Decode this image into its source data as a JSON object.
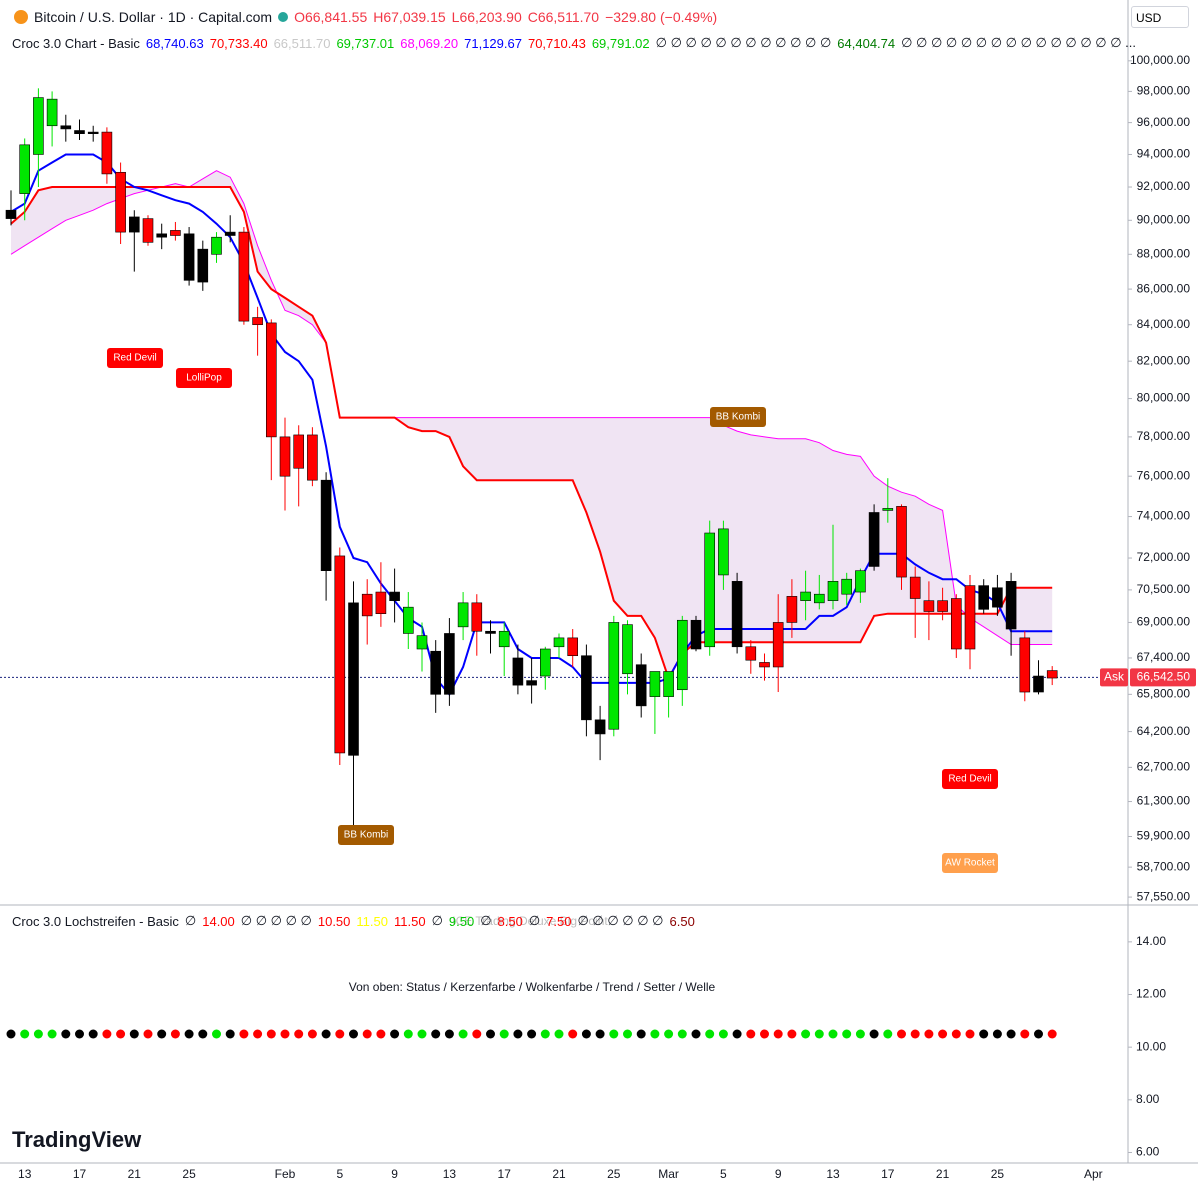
{
  "header": {
    "symbol": "Bitcoin / U.S. Dollar · 1D · Capital.com",
    "ohlc": [
      {
        "text": "O66,841.55",
        "color": "#f23645"
      },
      {
        "text": "H67,039.15",
        "color": "#f23645"
      },
      {
        "text": "L66,203.90",
        "color": "#f23645"
      },
      {
        "text": "C66,511.70",
        "color": "#f23645"
      },
      {
        "text": "−329.80 (−0.49%)",
        "color": "#f23645"
      }
    ],
    "currency": "USD",
    "brand": "TradingView",
    "watermark": "ICE Trading Deluxe Big Point"
  },
  "indicator": {
    "name": "Croc 3.0 Chart - Basic",
    "values": [
      {
        "text": "68,740.63",
        "color": "#0000ff"
      },
      {
        "text": "70,733.40",
        "color": "#ff0000"
      },
      {
        "text": "66,511.70",
        "color": "#c8c8c8"
      },
      {
        "text": "69,737.01",
        "color": "#00c800"
      },
      {
        "text": "68,069.20",
        "color": "#ff00ff"
      },
      {
        "text": "71,129.67",
        "color": "#0000ff"
      },
      {
        "text": "70,710.43",
        "color": "#ff0000"
      },
      {
        "text": "69,791.02",
        "color": "#00c800"
      },
      {
        "text": "∅ ∅ ∅ ∅ ∅ ∅ ∅ ∅ ∅ ∅ ∅ ∅",
        "color": "#131722"
      },
      {
        "text": "64,404.74",
        "color": "#007a00"
      },
      {
        "text": "∅ ∅ ∅ ∅ ∅ ∅ ∅ ∅ ∅ ∅ ∅ ∅ ∅ ∅ ∅ ...",
        "color": "#131722"
      }
    ]
  },
  "lower_panel": {
    "name": "Croc 3.0 Lochstreifen - Basic",
    "values": [
      {
        "text": "∅",
        "color": "#131722"
      },
      {
        "text": "14.00",
        "color": "#ff0000"
      },
      {
        "text": "∅ ∅ ∅ ∅ ∅",
        "color": "#131722"
      },
      {
        "text": "10.50",
        "color": "#ff0000"
      },
      {
        "text": "11.50",
        "color": "#ffff00"
      },
      {
        "text": "11.50",
        "color": "#ff0000"
      },
      {
        "text": "∅",
        "color": "#131722"
      },
      {
        "text": "9.50",
        "color": "#00c800"
      },
      {
        "text": "∅",
        "color": "#131722"
      },
      {
        "text": "8.50",
        "color": "#ff0000"
      },
      {
        "text": "∅",
        "color": "#131722"
      },
      {
        "text": "7.50",
        "color": "#ff0000"
      },
      {
        "text": "∅ ∅ ∅ ∅ ∅ ∅",
        "color": "#131722"
      },
      {
        "text": "6.50",
        "color": "#8b0000"
      }
    ],
    "subtitle": "Von oben: Status / Kerzenfarbe / Wolkenfarbe / Trend / Setter / Welle",
    "ylim": [
      5.6,
      15.4
    ],
    "yticks": [
      {
        "value": 14,
        "label": "14.00"
      },
      {
        "value": 12,
        "label": "12.00"
      },
      {
        "value": 10,
        "label": "10.00"
      },
      {
        "value": 8,
        "label": "8.00"
      },
      {
        "value": 6,
        "label": "6.00"
      }
    ]
  },
  "chart_data": {
    "type": "candlestick",
    "log_scale": true,
    "categories": [
      null,
      "13",
      null,
      null,
      null,
      "17",
      null,
      null,
      null,
      "21",
      null,
      null,
      null,
      "25",
      null,
      null,
      null,
      null,
      null,
      null,
      "Feb",
      null,
      null,
      null,
      "5",
      null,
      null,
      null,
      "9",
      null,
      null,
      null,
      "13",
      null,
      null,
      null,
      "17",
      null,
      null,
      null,
      "21",
      null,
      null,
      null,
      "25",
      null,
      null,
      null,
      "Mar",
      null,
      null,
      null,
      "5",
      null,
      null,
      null,
      "9",
      null,
      null,
      null,
      "13",
      null,
      null,
      null,
      "17",
      null,
      null,
      null,
      "21",
      null,
      null,
      null,
      "25",
      null,
      null,
      null,
      null,
      null,
      null,
      "Apr"
    ],
    "open": [
      90600,
      91600,
      94000,
      95800,
      95800,
      95500,
      95400,
      95400,
      92900,
      90200,
      90100,
      89200,
      89400,
      89200,
      88300,
      88000,
      89300,
      89300,
      84400,
      84100,
      78000,
      78100,
      78100,
      75800,
      72100,
      69900,
      70300,
      70400,
      70400,
      68500,
      68400,
      67700,
      68500,
      68800,
      69900,
      68600,
      67900,
      67400,
      66400,
      66600,
      67900,
      68300,
      67500,
      64700,
      64300,
      68900,
      67100,
      65700,
      65700,
      66000,
      69100,
      67900,
      71200,
      70900,
      67900,
      67200,
      69000,
      69000,
      70000,
      69900,
      70000,
      70300,
      70400,
      71600,
      74300,
      74500,
      71100,
      70000,
      70000,
      70100,
      70700,
      70700,
      70600,
      70900,
      68300,
      66600,
      66841.55,
      null,
      null,
      null
    ],
    "high": [
      91800,
      95000,
      98200,
      98000,
      96500,
      96200,
      95800,
      95700,
      93500,
      90600,
      90300,
      89800,
      89900,
      89600,
      88800,
      89300,
      90300,
      89600,
      85000,
      84300,
      79000,
      78600,
      78500,
      76200,
      72500,
      70900,
      71000,
      71800,
      71500,
      70400,
      69000,
      68200,
      69200,
      70400,
      70300,
      69100,
      69000,
      68000,
      67400,
      67900,
      68500,
      68700,
      68000,
      65300,
      69300,
      69100,
      67600,
      66600,
      66800,
      69300,
      69300,
      73800,
      73800,
      71300,
      68200,
      67600,
      70300,
      71000,
      71400,
      71200,
      73600,
      71300,
      71500,
      74600,
      75900,
      74600,
      71600,
      70900,
      70600,
      70300,
      71200,
      71000,
      71200,
      71300,
      68600,
      67300,
      67039.15,
      null,
      null,
      null
    ],
    "low": [
      89700,
      90000,
      92000,
      94500,
      94800,
      94900,
      94800,
      92200,
      88600,
      87000,
      88500,
      88300,
      88800,
      86200,
      85900,
      87500,
      88700,
      84000,
      82300,
      75800,
      74300,
      74500,
      75500,
      70000,
      62800,
      60200,
      68000,
      68800,
      69000,
      67800,
      66800,
      65000,
      65300,
      68200,
      67500,
      67600,
      66600,
      65800,
      65400,
      66000,
      67400,
      67000,
      64000,
      63000,
      64000,
      65800,
      64800,
      64100,
      64800,
      65300,
      67700,
      67500,
      70500,
      67600,
      66700,
      66400,
      65900,
      68300,
      69100,
      69600,
      69600,
      69800,
      69900,
      71400,
      73700,
      70500,
      68300,
      68200,
      69100,
      67400,
      66900,
      69400,
      69300,
      67500,
      65500,
      65800,
      66203.9,
      null,
      null,
      null
    ],
    "close": [
      90100,
      94600,
      97600,
      97500,
      95600,
      95300,
      95300,
      92800,
      89300,
      89300,
      88700,
      89000,
      89100,
      86500,
      86400,
      89000,
      89100,
      84200,
      84000,
      78000,
      76000,
      76400,
      75800,
      71400,
      63300,
      63200,
      69300,
      69400,
      70000,
      69700,
      67800,
      65800,
      65800,
      69900,
      68600,
      68500,
      68600,
      66200,
      66200,
      67800,
      68300,
      67500,
      64700,
      64100,
      69000,
      66700,
      65300,
      66800,
      66800,
      69100,
      67800,
      73200,
      73400,
      67900,
      67300,
      67000,
      67000,
      70200,
      70400,
      70300,
      70900,
      71000,
      71400,
      74200,
      74400,
      71100,
      70100,
      69500,
      69500,
      67800,
      67800,
      69600,
      69700,
      68700,
      65900,
      65900,
      66511.7,
      null,
      null,
      null
    ],
    "colors": [
      "#000000",
      "#00e600",
      "#00e600",
      "#00e600",
      "#000000",
      "#000000",
      "#000000",
      "#ff0000",
      "#ff0000",
      "#000000",
      "#ff0000",
      "#000000",
      "#ff0000",
      "#000000",
      "#000000",
      "#00e600",
      "#000000",
      "#ff0000",
      "#ff0000",
      "#ff0000",
      "#ff0000",
      "#ff0000",
      "#ff0000",
      "#000000",
      "#ff0000",
      "#000000",
      "#ff0000",
      "#ff0000",
      "#000000",
      "#00e600",
      "#00e600",
      "#000000",
      "#000000",
      "#00e600",
      "#ff0000",
      "#000000",
      "#00e600",
      "#000000",
      "#000000",
      "#00e600",
      "#00e600",
      "#ff0000",
      "#000000",
      "#000000",
      "#00e600",
      "#00e600",
      "#000000",
      "#00e600",
      "#00e600",
      "#00e600",
      "#000000",
      "#00e600",
      "#00e600",
      "#000000",
      "#ff0000",
      "#ff0000",
      "#ff0000",
      "#ff0000",
      "#00e600",
      "#00e600",
      "#00e600",
      "#00e600",
      "#00e600",
      "#000000",
      "#00e600",
      "#ff0000",
      "#ff0000",
      "#ff0000",
      "#ff0000",
      "#ff0000",
      "#ff0000",
      "#000000",
      "#000000",
      "#000000",
      "#ff0000",
      "#000000",
      "#ff0000",
      null,
      null,
      null
    ],
    "series": [
      {
        "name": "Wolke oben",
        "color": "#ff00ff",
        "values": [
          88000,
          88500,
          89000,
          89500,
          90000,
          90300,
          90600,
          91000,
          91300,
          91600,
          91800,
          92000,
          92200,
          92000,
          92500,
          93000,
          92600,
          91000,
          88500,
          86500,
          84800,
          84500,
          84000,
          83000,
          79000,
          79000,
          79000,
          79000,
          79000,
          79000,
          79000,
          79000,
          79000,
          79000,
          79000,
          79000,
          79000,
          79000,
          79000,
          79000,
          79000,
          79000,
          79000,
          79000,
          79000,
          79000,
          79000,
          79000,
          79000,
          79000,
          79000,
          79000,
          78600,
          78300,
          78100,
          78000,
          77900,
          77900,
          77900,
          77700,
          77300,
          77100,
          77000,
          76000,
          75500,
          75200,
          75000,
          74600,
          74300,
          69800,
          69200,
          68800,
          68400,
          68000,
          68000,
          68000,
          68000,
          null,
          null,
          null
        ]
      },
      {
        "name": "Kijun",
        "color": "#ff0000",
        "values": [
          89800,
          90500,
          91800,
          92000,
          92000,
          92000,
          92000,
          92000,
          92000,
          92000,
          92000,
          92000,
          92000,
          92000,
          92000,
          92000,
          92000,
          90500,
          87000,
          86000,
          85500,
          85000,
          84500,
          83000,
          79000,
          79000,
          79000,
          79000,
          79000,
          78500,
          78300,
          78300,
          78000,
          76500,
          75800,
          75800,
          75800,
          75800,
          75800,
          75800,
          75800,
          75800,
          74200,
          72300,
          70000,
          69300,
          69300,
          68300,
          66500,
          67600,
          68100,
          68100,
          68100,
          68100,
          68100,
          68100,
          68100,
          68100,
          68100,
          68100,
          68100,
          68100,
          68100,
          69300,
          69400,
          69400,
          69400,
          69400,
          69400,
          69400,
          69400,
          69400,
          69400,
          70600,
          70600,
          70600,
          70600,
          null,
          null,
          null
        ]
      },
      {
        "name": "Tenkan",
        "color": "#0000ff",
        "values": [
          90500,
          91000,
          93000,
          93500,
          94000,
          94000,
          94000,
          93500,
          92500,
          92000,
          91800,
          91500,
          91200,
          91000,
          90500,
          89800,
          89000,
          87500,
          85500,
          83500,
          82500,
          82000,
          81000,
          77500,
          73500,
          72000,
          71800,
          70800,
          70000,
          69200,
          68800,
          66500,
          65800,
          67000,
          69000,
          69000,
          69000,
          67800,
          67400,
          67400,
          67400,
          67000,
          66300,
          66300,
          66300,
          66300,
          66300,
          66300,
          66500,
          67600,
          68400,
          68700,
          68700,
          68700,
          68700,
          68700,
          68700,
          68700,
          68700,
          69300,
          69300,
          69700,
          71000,
          72200,
          72200,
          72200,
          71700,
          71300,
          71000,
          71000,
          70500,
          70300,
          69900,
          68600,
          68600,
          68600,
          68600,
          null,
          null,
          null
        ]
      }
    ],
    "annotations": [
      {
        "text": "Red Devil",
        "color": "#ff0000"
      },
      {
        "text": "LolliPop",
        "color": "#ff0000"
      },
      {
        "text": "BB Kombi",
        "color": "#a35a00"
      },
      {
        "text": "BB Kombi",
        "color": "#a35a00"
      },
      {
        "text": "Red Devil",
        "color": "#ff0000"
      },
      {
        "text": "AW Rocket",
        "color": "#ffa04d"
      }
    ],
    "ask": {
      "name": "Ask",
      "value": 66542.5,
      "label": "66,542.50"
    },
    "ylim": [
      57250,
      104100
    ],
    "yticks": [
      {
        "value": 100000,
        "label": "100,000.00"
      },
      {
        "value": 98000,
        "label": "98,000.00"
      },
      {
        "value": 96000,
        "label": "96,000.00"
      },
      {
        "value": 94000,
        "label": "94,000.00"
      },
      {
        "value": 92000,
        "label": "92,000.00"
      },
      {
        "value": 90000,
        "label": "90,000.00"
      },
      {
        "value": 88000,
        "label": "88,000.00"
      },
      {
        "value": 86000,
        "label": "86,000.00"
      },
      {
        "value": 84000,
        "label": "84,000.00"
      },
      {
        "value": 82000,
        "label": "82,000.00"
      },
      {
        "value": 80000,
        "label": "80,000.00"
      },
      {
        "value": 78000,
        "label": "78,000.00"
      },
      {
        "value": 76000,
        "label": "76,000.00"
      },
      {
        "value": 74000,
        "label": "74,000.00"
      },
      {
        "value": 72000,
        "label": "72,000.00"
      },
      {
        "value": 70500,
        "label": "70,500.00"
      },
      {
        "value": 69000,
        "label": "69,000.00"
      },
      {
        "value": 67400,
        "label": "67,400.00"
      },
      {
        "value": 65800,
        "label": "65,800.00"
      },
      {
        "value": 64200,
        "label": "64,200.00"
      },
      {
        "value": 62700,
        "label": "62,700.00"
      },
      {
        "value": 61300,
        "label": "61,300.00"
      },
      {
        "value": 59900,
        "label": "59,900.00"
      },
      {
        "value": 58700,
        "label": "58,700.00"
      },
      {
        "value": 57550,
        "label": "57,550.00"
      }
    ]
  }
}
